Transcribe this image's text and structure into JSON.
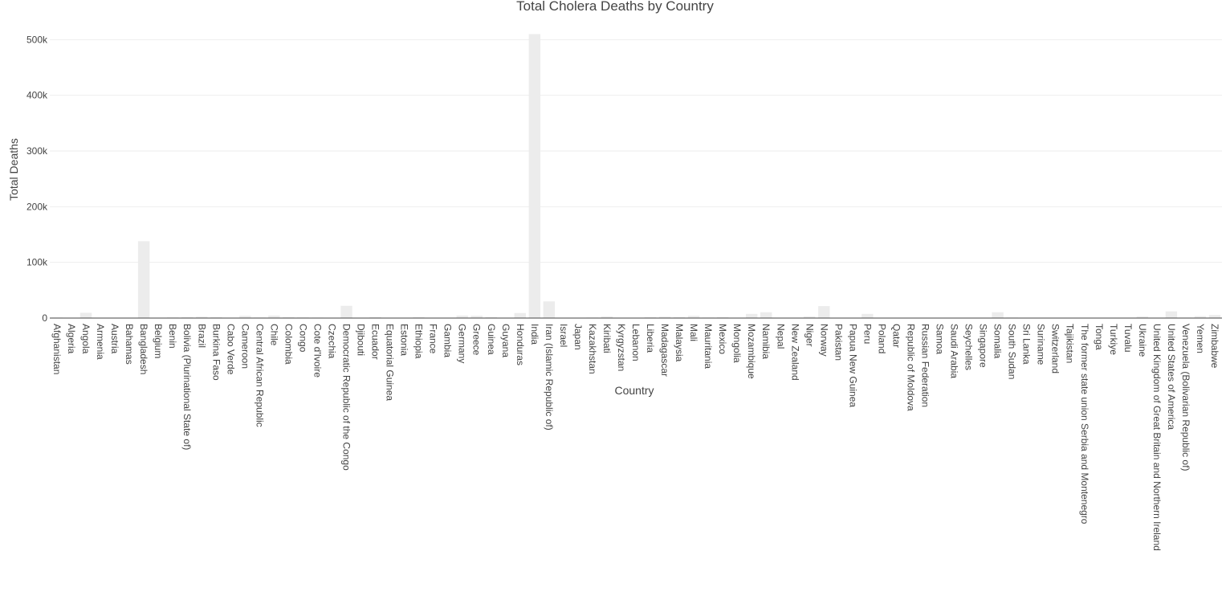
{
  "chart_data": {
    "type": "bar",
    "title": "Total Cholera Deaths by Country",
    "xlabel": "Country",
    "ylabel": "Total Deaths",
    "ylim": [
      0,
      512000
    ],
    "y_ticks": [
      0,
      100000,
      200000,
      300000,
      400000,
      500000
    ],
    "y_tick_labels": [
      "0",
      "100k",
      "200k",
      "300k",
      "400k",
      "500k"
    ],
    "grid": true,
    "bar_color": "#ececec",
    "categories": [
      "Afghanistan",
      "Algeria",
      "Angola",
      "Armenia",
      "Austria",
      "Bahamas",
      "Bangladesh",
      "Belgium",
      "Benin",
      "Bolivia (Plurinational State of)",
      "Brazil",
      "Burkina Faso",
      "Cabo Verde",
      "Cameroon",
      "Central African Republic",
      "Chile",
      "Colombia",
      "Congo",
      "Cote d'Ivoire",
      "Czechia",
      "Democratic Republic of the Congo",
      "Djibouti",
      "Ecuador",
      "Equatorial Guinea",
      "Estonia",
      "Ethiopia",
      "France",
      "Gambia",
      "Germany",
      "Greece",
      "Guinea",
      "Guyana",
      "Honduras",
      "India",
      "Iran (Islamic Republic of)",
      "Israel",
      "Japan",
      "Kazakhstan",
      "Kiribati",
      "Kyrgyzstan",
      "Lebanon",
      "Liberia",
      "Madagascar",
      "Malaysia",
      "Mali",
      "Mauritania",
      "Mexico",
      "Mongolia",
      "Mozambique",
      "Namibia",
      "Nepal",
      "New Zealand",
      "Niger",
      "Norway",
      "Pakistan",
      "Papua New Guinea",
      "Peru",
      "Poland",
      "Qatar",
      "Republic of Moldova",
      "Russian Federation",
      "Samoa",
      "Saudi Arabia",
      "Seychelles",
      "Singapore",
      "Somalia",
      "South Sudan",
      "Sri Lanka",
      "Suriname",
      "Switzerland",
      "Tajikistan",
      "The former state union Serbia and Montenegro",
      "Tonga",
      "Turkiye",
      "Tuvalu",
      "Ukraine",
      "United Kingdom of Great Britain and Northern Ireland",
      "United States of America",
      "Venezuela (Bolivarian Republic of)",
      "Yemen",
      "Zimbabwe"
    ],
    "values": [
      1000,
      400,
      9500,
      0,
      0,
      0,
      138000,
      0,
      1200,
      1500,
      2500,
      1500,
      300,
      4000,
      1000,
      4500,
      1500,
      1200,
      800,
      0,
      22000,
      300,
      1800,
      300,
      0,
      1500,
      0,
      200,
      4500,
      4200,
      1500,
      200,
      9000,
      510000,
      30000,
      0,
      0,
      1000,
      3000,
      0,
      100,
      1500,
      2500,
      1500,
      4000,
      1000,
      1500,
      100,
      7500,
      10500,
      600,
      0,
      3000,
      21500,
      200,
      600,
      7500,
      100,
      0,
      0,
      100,
      0,
      0,
      0,
      100,
      10500,
      1000,
      500,
      0,
      0,
      200,
      0,
      0,
      0,
      0,
      3000,
      0,
      12000,
      800,
      3500,
      5500
    ]
  }
}
